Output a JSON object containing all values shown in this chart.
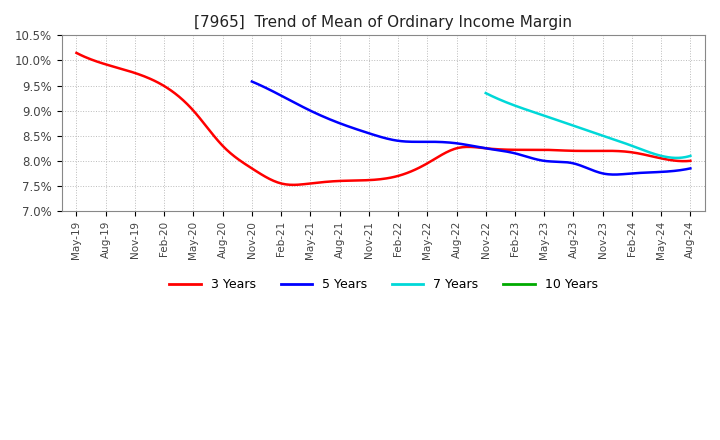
{
  "title": "[7965]  Trend of Mean of Ordinary Income Margin",
  "background_color": "#ffffff",
  "plot_bg_color": "#ffffff",
  "grid_color": "#aaaaaa",
  "ylim": [
    0.07,
    0.105
  ],
  "yticks": [
    0.07,
    0.075,
    0.08,
    0.085,
    0.09,
    0.095,
    0.1,
    0.105
  ],
  "ytick_labels": [
    "7.0%",
    "7.5%",
    "8.0%",
    "8.5%",
    "9.0%",
    "9.5%",
    "10.0%",
    "10.5%"
  ],
  "x_labels": [
    "May-19",
    "Aug-19",
    "Nov-19",
    "Feb-20",
    "May-20",
    "Aug-20",
    "Nov-20",
    "Feb-21",
    "May-21",
    "Aug-21",
    "Nov-21",
    "Feb-22",
    "May-22",
    "Aug-22",
    "Nov-22",
    "Feb-23",
    "May-23",
    "Aug-23",
    "Nov-23",
    "Feb-24",
    "May-24",
    "Aug-24"
  ],
  "series_3y": {
    "label": "3 Years",
    "color": "#ff0000",
    "data_x": [
      0,
      2,
      4,
      5,
      6,
      7,
      8,
      9,
      11,
      12,
      13,
      14,
      15,
      16,
      17,
      18,
      19,
      20,
      21
    ],
    "data_y": [
      0.1015,
      0.0975,
      0.09,
      0.083,
      0.0785,
      0.0755,
      0.0755,
      0.076,
      0.077,
      0.0795,
      0.0825,
      0.0825,
      0.0822,
      0.0822,
      0.082,
      0.082,
      0.0817,
      0.0805,
      0.08
    ]
  },
  "series_5y": {
    "label": "5 Years",
    "color": "#0000ff",
    "data_x": [
      6,
      7,
      8,
      9,
      10,
      11,
      12,
      13,
      14,
      15,
      16,
      17,
      18,
      19,
      20,
      21
    ],
    "data_y": [
      0.0958,
      0.093,
      0.09,
      0.0875,
      0.0855,
      0.084,
      0.0838,
      0.0835,
      0.0825,
      0.0815,
      0.08,
      0.0795,
      0.0775,
      0.0775,
      0.0778,
      0.0785
    ]
  },
  "series_7y": {
    "label": "7 Years",
    "color": "#00d8d8",
    "data_x": [
      14,
      15,
      16,
      17,
      18,
      19,
      20,
      21
    ],
    "data_y": [
      0.0935,
      0.091,
      0.089,
      0.087,
      0.085,
      0.083,
      0.081,
      0.081
    ]
  },
  "series_10y": {
    "label": "10 Years",
    "color": "#00aa00",
    "data_x": [],
    "data_y": []
  },
  "legend_colors": [
    "#ff0000",
    "#0000ff",
    "#00d8d8",
    "#00aa00"
  ],
  "legend_labels": [
    "3 Years",
    "5 Years",
    "7 Years",
    "10 Years"
  ]
}
